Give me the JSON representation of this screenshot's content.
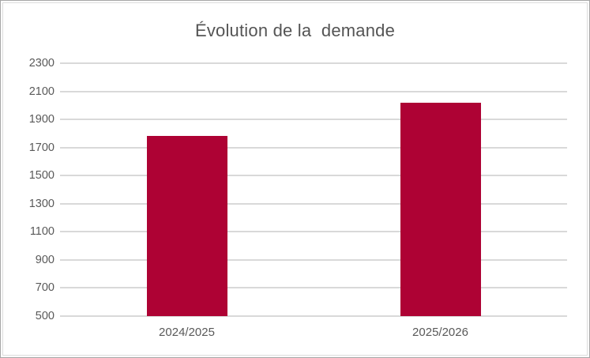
{
  "chart_data": {
    "type": "bar",
    "title": "Évolution de la  demande",
    "categories": [
      "2024/2025",
      "2025/2026"
    ],
    "values": [
      1780,
      2020
    ],
    "ylim": [
      500,
      2300
    ],
    "ytick_step": 200,
    "ytick_labels": [
      "2300",
      "2100",
      "1900",
      "1700",
      "1500",
      "1300",
      "1100",
      "900",
      "700",
      "500"
    ],
    "grid": true,
    "legend": false,
    "xlabel": "",
    "ylabel": "",
    "bar_color": "#AE0234",
    "text_color": "#595959",
    "gridline_color": "#D9D9D9",
    "frame_border_color": "#A6A6A6",
    "chart_border_color": "#DCDCDC"
  }
}
